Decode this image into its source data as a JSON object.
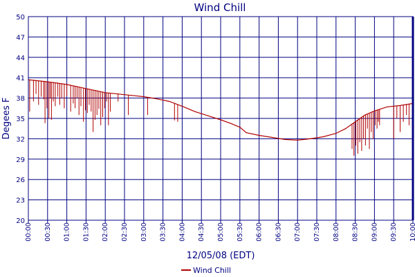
{
  "chart_data": {
    "type": "line",
    "title": "Wind Chill",
    "xlabel": "12/05/08 (EDT)",
    "ylabel": "Degees F",
    "ylim": [
      20,
      50
    ],
    "yticks": [
      "20",
      "23",
      "26",
      "29",
      "32",
      "35",
      "38",
      "41",
      "44",
      "47",
      "50"
    ],
    "xticks": [
      "00:00",
      "00:30",
      "01:00",
      "01:30",
      "02:00",
      "02:30",
      "03:00",
      "03:30",
      "04:00",
      "04:30",
      "05:00",
      "05:30",
      "06:00",
      "06:30",
      "07:00",
      "07:30",
      "08:00",
      "08:30",
      "09:00",
      "09:30",
      "10:00"
    ],
    "grid": true,
    "legend_position": "bottom",
    "colors": {
      "line": "#b00000",
      "frame": "#000080",
      "grid": "#000080",
      "text": "#000080"
    },
    "series": [
      {
        "name": "Wind Chill",
        "x_minutes": [
          0,
          10,
          20,
          30,
          45,
          60,
          75,
          90,
          105,
          120,
          140,
          160,
          180,
          200,
          220,
          240,
          260,
          280,
          300,
          315,
          330,
          340,
          360,
          380,
          400,
          420,
          440,
          460,
          480,
          495,
          510,
          525,
          540,
          560,
          580,
          600
        ],
        "values": [
          40.7,
          40.6,
          40.5,
          40.4,
          40.2,
          40.0,
          39.7,
          39.4,
          39.1,
          38.8,
          38.6,
          38.4,
          38.2,
          37.9,
          37.5,
          36.8,
          36.0,
          35.4,
          34.8,
          34.3,
          33.7,
          32.9,
          32.5,
          32.2,
          31.9,
          31.8,
          32.0,
          32.3,
          32.8,
          33.5,
          34.5,
          35.5,
          36.1,
          36.7,
          36.9,
          37.2
        ],
        "dips": [
          [
            2,
            36.0
          ],
          [
            8,
            37.5
          ],
          [
            12,
            38.6
          ],
          [
            16,
            37.0
          ],
          [
            20,
            38.2
          ],
          [
            24,
            37.8
          ],
          [
            26,
            34.3
          ],
          [
            29,
            36.5
          ],
          [
            32,
            35.0
          ],
          [
            34,
            38.0
          ],
          [
            36,
            34.8
          ],
          [
            39,
            37.5
          ],
          [
            42,
            36.8
          ],
          [
            46,
            38.2
          ],
          [
            49,
            37.0
          ],
          [
            52,
            38.0
          ],
          [
            56,
            36.5
          ],
          [
            60,
            38.3
          ],
          [
            66,
            36.0
          ],
          [
            70,
            37.2
          ],
          [
            73,
            36.5
          ],
          [
            76,
            38.0
          ],
          [
            79,
            35.5
          ],
          [
            82,
            36.8
          ],
          [
            86,
            34.5
          ],
          [
            89,
            36.2
          ],
          [
            92,
            35.8
          ],
          [
            95,
            37.0
          ],
          [
            98,
            36.0
          ],
          [
            101,
            33.0
          ],
          [
            104,
            34.8
          ],
          [
            107,
            35.5
          ],
          [
            110,
            36.4
          ],
          [
            113,
            34.0
          ],
          [
            116,
            35.2
          ],
          [
            119,
            36.5
          ],
          [
            122,
            37.5
          ],
          [
            125,
            34.0
          ],
          [
            128,
            36.0
          ],
          [
            140,
            37.5
          ],
          [
            156,
            35.5
          ],
          [
            186,
            35.5
          ],
          [
            228,
            34.7
          ],
          [
            233,
            34.5
          ],
          [
            238,
            36.8
          ],
          [
            505,
            30.5
          ],
          [
            508,
            29.5
          ],
          [
            511,
            31.0
          ],
          [
            514,
            29.8
          ],
          [
            517,
            31.5
          ],
          [
            520,
            30.2
          ],
          [
            523,
            32.0
          ],
          [
            526,
            31.0
          ],
          [
            529,
            33.5
          ],
          [
            532,
            30.5
          ],
          [
            535,
            33.0
          ],
          [
            538,
            32.0
          ],
          [
            541,
            34.0
          ],
          [
            544,
            33.5
          ],
          [
            546,
            34.5
          ],
          [
            548,
            34.0
          ],
          [
            570,
            32.0
          ],
          [
            575,
            35.0
          ],
          [
            580,
            33.0
          ],
          [
            585,
            34.5
          ],
          [
            590,
            35.5
          ],
          [
            594,
            34.0
          ]
        ]
      }
    ]
  }
}
